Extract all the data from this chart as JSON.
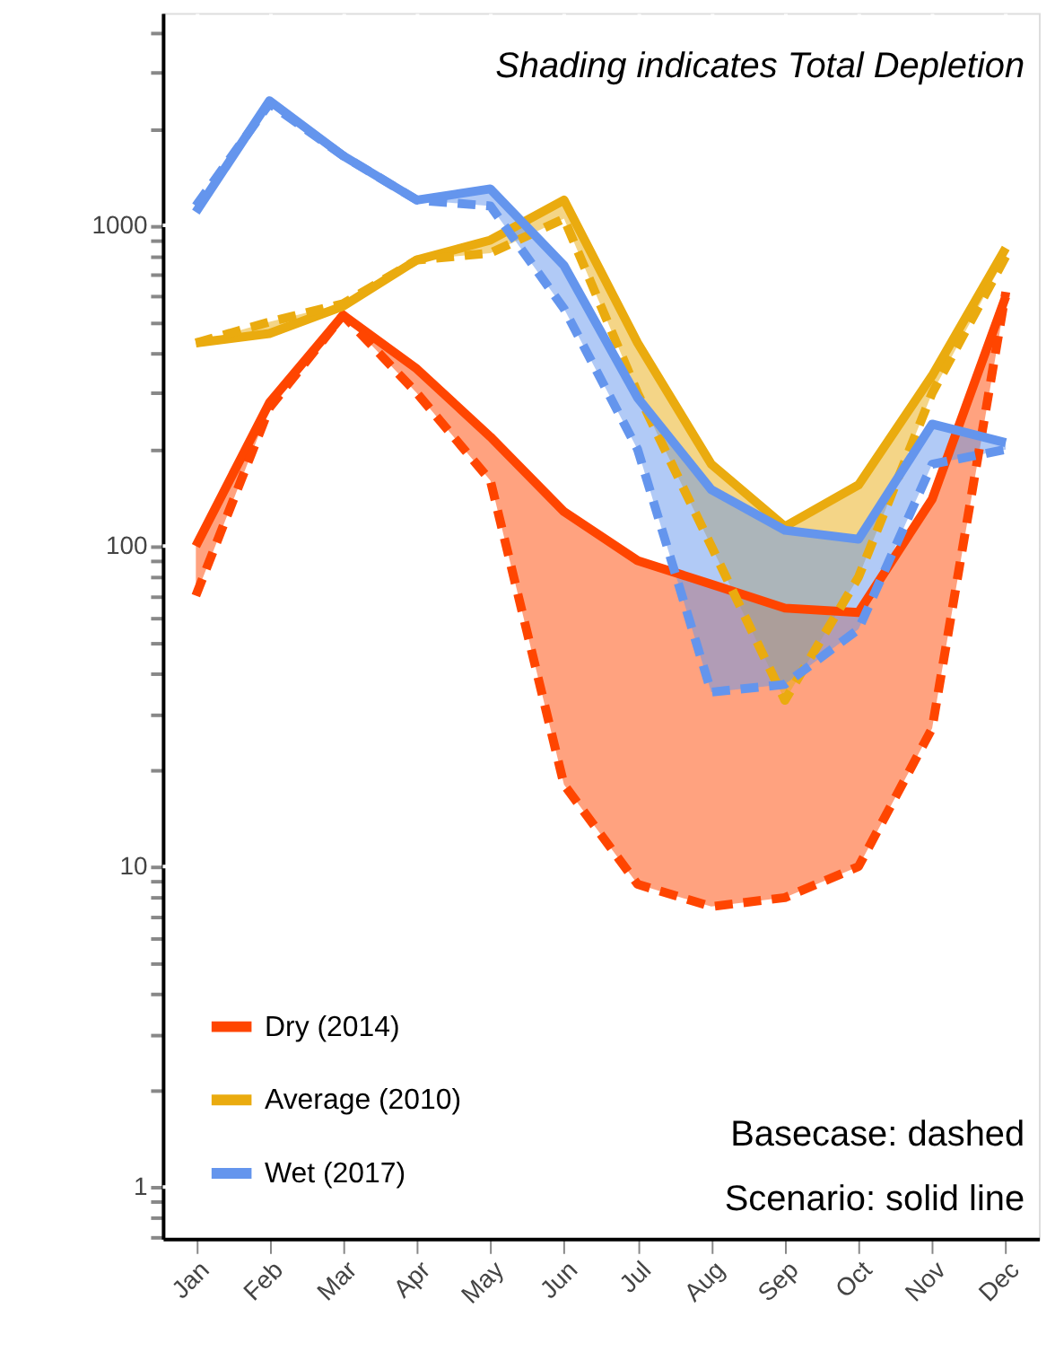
{
  "chart_data": {
    "type": "line",
    "categories": [
      "Jan",
      "Feb",
      "Mar",
      "Apr",
      "May",
      "Jun",
      "Jul",
      "Aug",
      "Sep",
      "Oct",
      "Nov",
      "Dec"
    ],
    "log": "y",
    "ylim": [
      0.69,
      4600
    ],
    "yticks": [
      {
        "value": 0.7,
        "label": null
      },
      {
        "value": 0.8,
        "label": null
      },
      {
        "value": 0.9,
        "label": null
      },
      1,
      {
        "value": 2,
        "label": null
      },
      {
        "value": 3,
        "label": null
      },
      {
        "value": 4,
        "label": null
      },
      {
        "value": 5,
        "label": null
      },
      {
        "value": 6,
        "label": null
      },
      {
        "value": 7,
        "label": null
      },
      {
        "value": 8,
        "label": null
      },
      {
        "value": 9,
        "label": null
      },
      10,
      {
        "value": 20,
        "label": null
      },
      {
        "value": 30,
        "label": null
      },
      {
        "value": 40,
        "label": null
      },
      {
        "value": 50,
        "label": null
      },
      {
        "value": 60,
        "label": null
      },
      {
        "value": 70,
        "label": null
      },
      {
        "value": 80,
        "label": null
      },
      {
        "value": 90,
        "label": null
      },
      100,
      {
        "value": 200,
        "label": null
      },
      {
        "value": 300,
        "label": null
      },
      {
        "value": 400,
        "label": null
      },
      {
        "value": 500,
        "label": null
      },
      {
        "value": 600,
        "label": null
      },
      {
        "value": 700,
        "label": null
      },
      {
        "value": 800,
        "label": null
      },
      {
        "value": 900,
        "label": null
      },
      1000,
      {
        "value": 2000,
        "label": null
      },
      {
        "value": 3000,
        "label": null
      },
      {
        "value": 4000,
        "label": null
      }
    ],
    "grid": true,
    "legend": "bottom left",
    "annotations": [
      "Shading indicates Total Depletion",
      "Basecase: dashed",
      "Scenario: solid line"
    ],
    "series": [
      {
        "name": "Dry (2014)",
        "color": "#ff4500",
        "line_style": "solid",
        "values": [
          100,
          280,
          525,
          357,
          219,
          128,
          90,
          76,
          64,
          62,
          140,
          600
        ],
        "lower": [
          70,
          270,
          525,
          300,
          160,
          18,
          8.8,
          7.5,
          8,
          10,
          27,
          600
        ],
        "upper": [
          100,
          280,
          525,
          357,
          219,
          128,
          90,
          76,
          64,
          62,
          140,
          620
        ]
      },
      {
        "color": "#ff4500",
        "line_style": "dashed",
        "values": [
          70,
          270,
          525,
          300,
          160,
          18,
          8.8,
          7.5,
          8,
          10,
          27,
          620
        ]
      },
      {
        "name": "Average (2010)",
        "color": "#eaab0f",
        "line_style": "solid",
        "values": [
          430,
          460,
          560,
          780,
          900,
          1200,
          430,
          180,
          115,
          155,
          340,
          850
        ],
        "lower": [
          430,
          460,
          560,
          780,
          820,
          1050,
          300,
          100,
          33,
          80,
          300,
          800
        ],
        "upper": [
          430,
          500,
          570,
          780,
          900,
          1200,
          430,
          180,
          115,
          155,
          340,
          850
        ]
      },
      {
        "color": "#eaab0f",
        "line_style": "dashed",
        "values": [
          430,
          500,
          570,
          780,
          820,
          1050,
          300,
          100,
          33,
          80,
          300,
          800
        ]
      },
      {
        "name": "Wet (2017)",
        "color": "#6495ed",
        "line_style": "solid",
        "values": [
          1100,
          2450,
          1650,
          1200,
          1300,
          750,
          290,
          150,
          112,
          105,
          240,
          210
        ],
        "lower": [
          1100,
          2400,
          1650,
          1200,
          1150,
          550,
          200,
          35,
          37,
          55,
          180,
          200
        ],
        "upper": [
          1150,
          2450,
          1650,
          1200,
          1300,
          750,
          290,
          150,
          112,
          105,
          240,
          210
        ]
      },
      {
        "color": "#6495ed",
        "line_style": "dashed",
        "values": [
          1150,
          2400,
          1650,
          1200,
          1150,
          550,
          200,
          35,
          37,
          55,
          180,
          200
        ]
      }
    ]
  }
}
